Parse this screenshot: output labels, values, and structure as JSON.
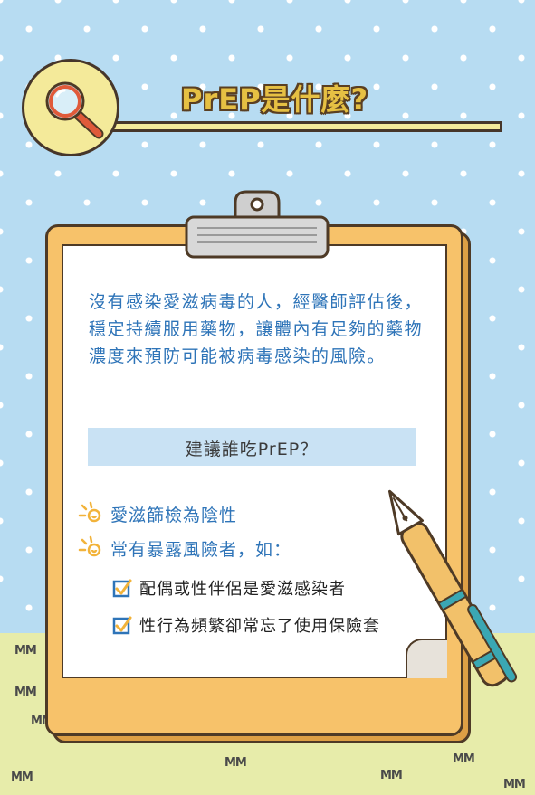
{
  "header": {
    "title": "PrEP是什麼?"
  },
  "intro": {
    "text": "沒有感染愛滋病毒的人，經醫師評估後，穩定持續服用藥物，讓體內有足夠的藥物濃度來預防可能被病毒感染的風險。"
  },
  "recommend": {
    "heading": "建議誰吃PrEP？",
    "criteria": [
      {
        "label": "愛滋篩檢為陰性"
      },
      {
        "label": "常有暴露風險者，如："
      }
    ],
    "examples": [
      {
        "label": "配偶或性伴侶是愛滋感染者"
      },
      {
        "label": "性行為頻繁卻常忘了使用保險套"
      }
    ]
  },
  "colors": {
    "sky": "#b7dcf2",
    "ground": "#e7ecaa",
    "board": "#f7c26a",
    "intro_text": "#2e74b8",
    "heading_box": "#c9e2f4",
    "title_fill": "#e6c043"
  }
}
